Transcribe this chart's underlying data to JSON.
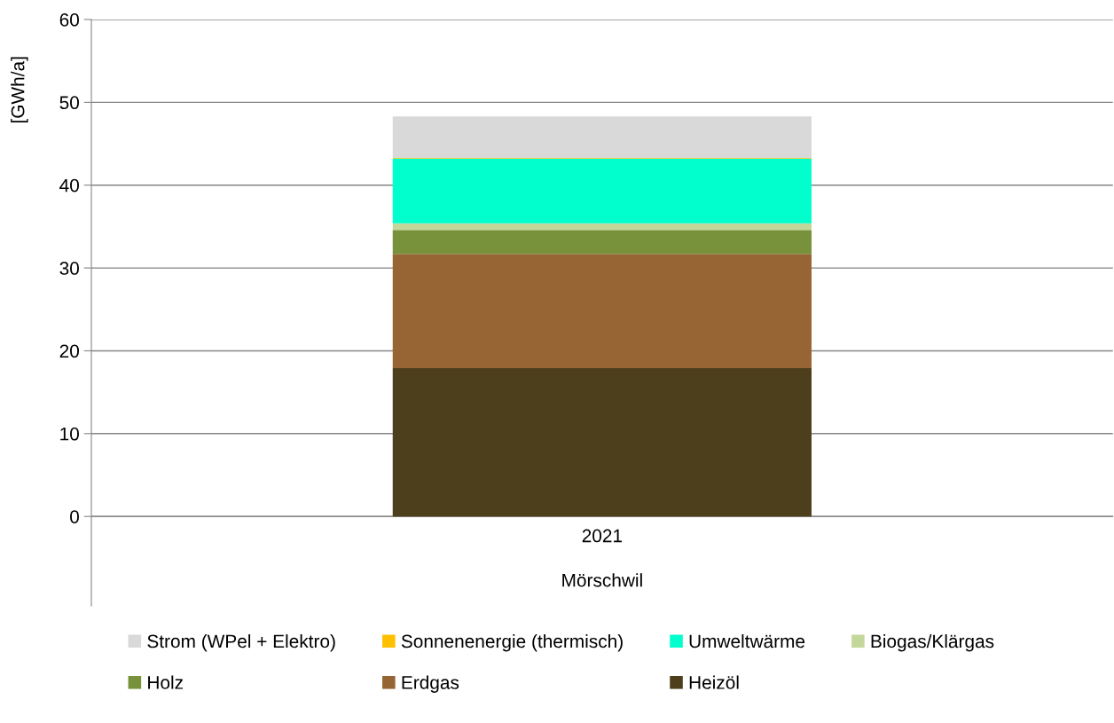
{
  "chart_data": {
    "type": "bar",
    "stacked": true,
    "categories": [
      "2021"
    ],
    "xlabel": "Mörschwil",
    "ylabel": "[GWh/a]",
    "ylim": [
      -10.8,
      60
    ],
    "yticks": [
      0,
      10,
      20,
      30,
      40,
      50,
      60
    ],
    "grid": "y",
    "legend": "bottom",
    "series": [
      {
        "name": "Heizöl",
        "color": "#4d3f1b",
        "values": [
          17.9
        ]
      },
      {
        "name": "Erdgas",
        "color": "#976534",
        "values": [
          13.8
        ]
      },
      {
        "name": "Holz",
        "color": "#77923b",
        "values": [
          2.9
        ]
      },
      {
        "name": "Biogas/Klärgas",
        "color": "#c4d79b",
        "values": [
          0.8
        ]
      },
      {
        "name": "Umweltwärme",
        "color": "#00ffcc",
        "values": [
          7.8
        ]
      },
      {
        "name": "Sonnenenergie (thermisch)",
        "color": "#ffc000",
        "values": [
          0.1
        ]
      },
      {
        "name": "Strom (WPel + Elektro)",
        "color": "#d9d9d9",
        "values": [
          5.0
        ]
      }
    ]
  }
}
